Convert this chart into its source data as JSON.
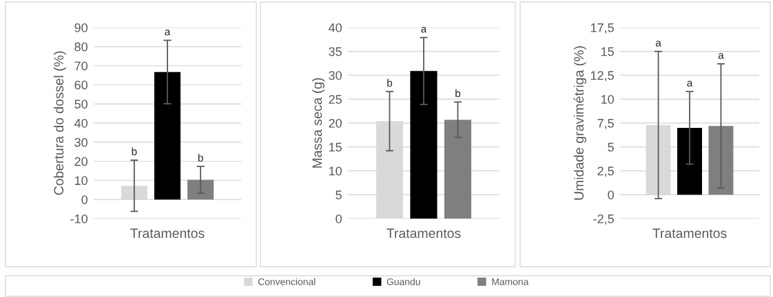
{
  "chart_data": [
    {
      "type": "bar",
      "categories": [
        "Tratamentos"
      ],
      "ylabel": "Cobertura do dossel (%)",
      "ylim": [
        -10,
        90
      ],
      "yticks": [
        -10,
        0,
        10,
        20,
        30,
        40,
        50,
        60,
        70,
        80,
        90
      ],
      "grid": "y",
      "legend": "bottom",
      "annotations": [
        "b",
        "a",
        "b"
      ],
      "series": [
        {
          "name": "Convencional",
          "color": "#d9d9d9",
          "values": [
            7.2
          ],
          "errors": [
            13.4
          ]
        },
        {
          "name": "Guandu",
          "color": "#000000",
          "values": [
            66.7
          ],
          "errors": [
            16.6
          ]
        },
        {
          "name": "Mamona",
          "color": "#7f7f7f",
          "values": [
            10.3
          ],
          "errors": [
            7.0
          ]
        }
      ]
    },
    {
      "type": "bar",
      "categories": [
        "Tratamentos"
      ],
      "ylabel": "Massa seca (g)",
      "ylim": [
        0,
        40
      ],
      "yticks": [
        0,
        5,
        10,
        15,
        20,
        25,
        30,
        35,
        40
      ],
      "grid": "y",
      "annotations": [
        "b",
        "a",
        "b"
      ],
      "series": [
        {
          "color": "#d9d9d9",
          "values": [
            20.4
          ],
          "errors": [
            6.2
          ]
        },
        {
          "color": "#000000",
          "values": [
            30.9
          ],
          "errors": [
            7.0
          ]
        },
        {
          "color": "#7f7f7f",
          "values": [
            20.7
          ],
          "errors": [
            3.7
          ]
        }
      ]
    },
    {
      "type": "bar",
      "categories": [
        "Tratamentos"
      ],
      "ylabel": "Umidade gravimétriga (%)",
      "ylim": [
        -2.5,
        17.5
      ],
      "yticks": [
        {
          "value": -2.5,
          "label": "-2,5"
        },
        0,
        {
          "value": 2.5,
          "label": "2,5"
        },
        5,
        {
          "value": 7.5,
          "label": "7,5"
        },
        10,
        {
          "value": 12.5,
          "label": "12,5"
        },
        15,
        {
          "value": 17.5,
          "label": "17,5"
        }
      ],
      "grid": "y",
      "annotations": [
        "a",
        "a",
        "a"
      ],
      "series": [
        {
          "color": "#d9d9d9",
          "values": [
            7.3
          ],
          "errors": [
            7.7
          ]
        },
        {
          "color": "#000000",
          "values": [
            7.0
          ],
          "errors": [
            3.8
          ]
        },
        {
          "color": "#7f7f7f",
          "values": [
            7.2
          ],
          "errors": [
            6.5
          ]
        }
      ]
    }
  ]
}
